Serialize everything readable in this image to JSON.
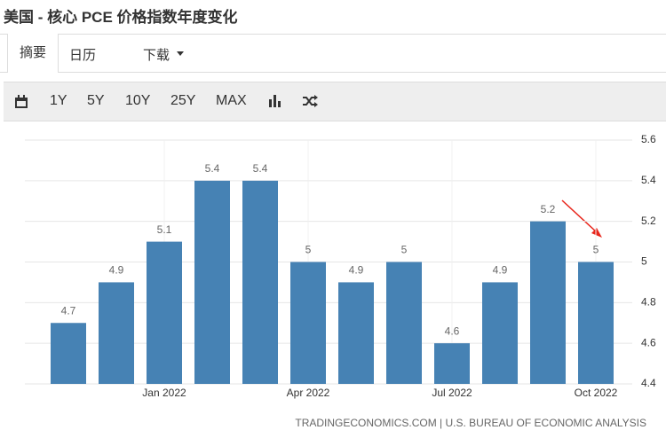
{
  "header": {
    "title": "美国 - 核心 PCE 价格指数年度变化"
  },
  "tabs": [
    "摘要",
    "日历",
    "下载"
  ],
  "toolbar": [
    "1Y",
    "5Y",
    "10Y",
    "25Y",
    "MAX"
  ],
  "chart_data": {
    "type": "bar",
    "categories": [
      null,
      null,
      "Jan 2022",
      null,
      null,
      "Apr 2022",
      null,
      null,
      "Jul 2022",
      null,
      null,
      "Oct 2022"
    ],
    "values": [
      4.7,
      4.9,
      5.1,
      5.4,
      5.4,
      5,
      4.9,
      5,
      4.6,
      4.9,
      5.2,
      5
    ],
    "color": "#4682b4",
    "ylim": [
      4.4,
      5.6
    ],
    "yticks": [
      4.4,
      4.6,
      4.8,
      5,
      5.2,
      5.4,
      5.6
    ],
    "grid": true,
    "source": "TRADINGECONOMICS.COM | U.S. BUREAU OF ECONOMIC ANALYSIS"
  }
}
